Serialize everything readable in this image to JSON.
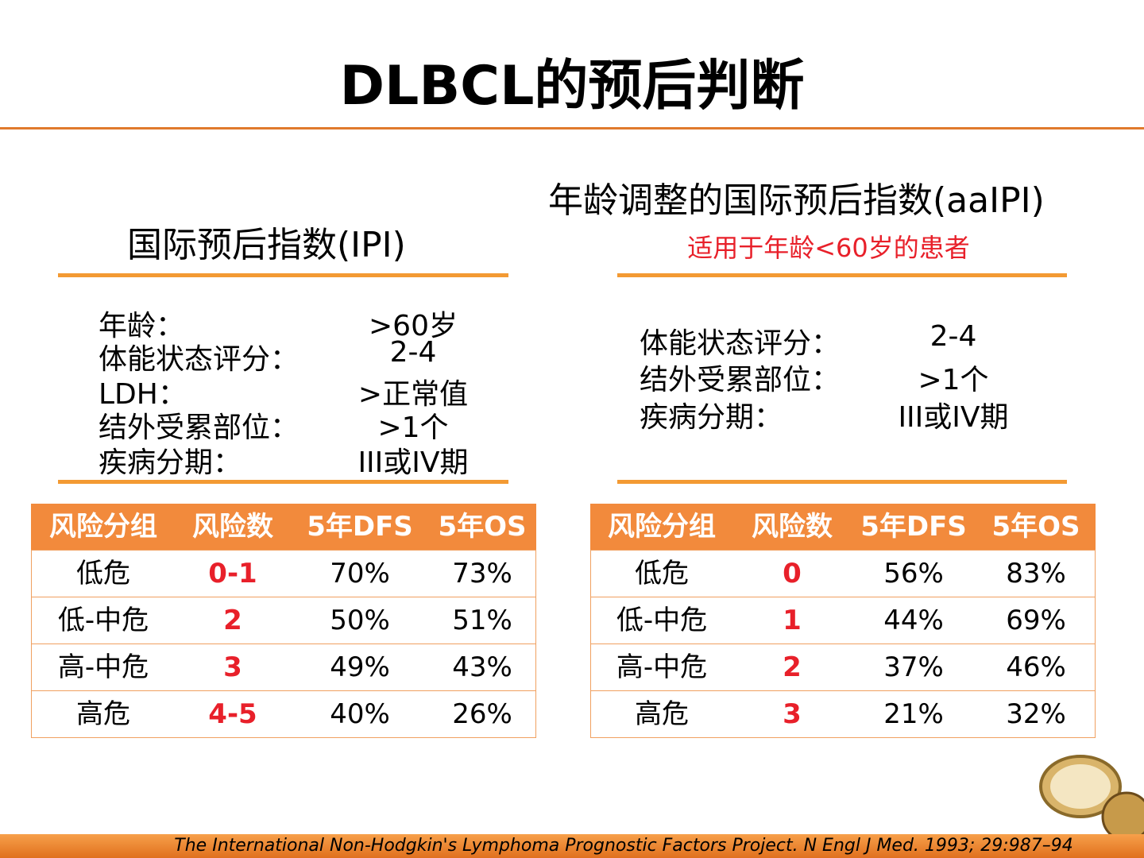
{
  "title": "DLBCL的预后判断",
  "left": {
    "heading": "国际预后指数(IPI)",
    "criteria": [
      {
        "label": "年龄：",
        "value": ">60岁"
      },
      {
        "label": "体能状态评分：",
        "value": "2-4"
      },
      {
        "label": "LDH：",
        "value": ">正常值"
      },
      {
        "label": "结外受累部位：",
        "value": ">1个"
      },
      {
        "label": "疾病分期：",
        "value": "III或IV期"
      }
    ],
    "table": {
      "header": [
        "风险分组",
        "风险数",
        "5年DFS",
        "5年OS"
      ],
      "rows": [
        [
          "低危",
          "0-1",
          "70%",
          "73%"
        ],
        [
          "低-中危",
          "2",
          "50%",
          "51%"
        ],
        [
          "高-中危",
          "3",
          "49%",
          "43%"
        ],
        [
          "高危",
          "4-5",
          "40%",
          "26%"
        ]
      ]
    }
  },
  "right": {
    "heading": "年龄调整的国际预后指数(aaIPI)",
    "subtitle": "适用于年龄<60岁的患者",
    "criteria": [
      {
        "label": "体能状态评分：",
        "value": "2-4"
      },
      {
        "label": "结外受累部位：",
        "value": ">1个"
      },
      {
        "label": "疾病分期：",
        "value": "III或IV期"
      }
    ],
    "table": {
      "header": [
        "风险分组",
        "风险数",
        "5年DFS",
        "5年OS"
      ],
      "rows": [
        [
          "低危",
          "0",
          "56%",
          "83%"
        ],
        [
          "低-中危",
          "1",
          "44%",
          "69%"
        ],
        [
          "高-中危",
          "2",
          "37%",
          "46%"
        ],
        [
          "高危",
          "3",
          "21%",
          "32%"
        ]
      ]
    }
  },
  "footer": "The International Non-Hodgkin's Lymphoma Prognostic Factors Project. N Engl J Med. 1993; 29:987–94"
}
